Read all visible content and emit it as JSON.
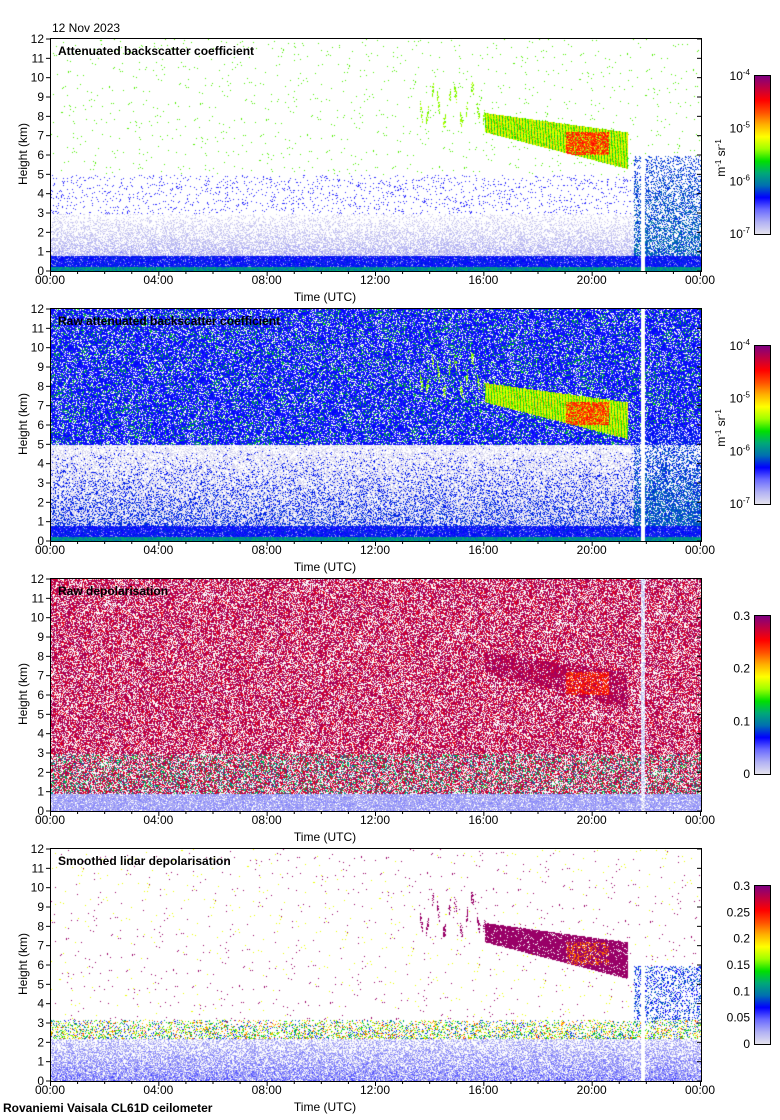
{
  "header": {
    "date": "12 Nov 2023"
  },
  "footer": {
    "site": "Rovaniemi Vaisala CL61D ceilometer"
  },
  "colorscale": [
    "#e4e2ee",
    "#b0b0f4",
    "#6a6aff",
    "#0000ff",
    "#0070b0",
    "#00a878",
    "#00e000",
    "#a0ff00",
    "#ffff00",
    "#ffb000",
    "#ff5000",
    "#ff0000",
    "#c00040",
    "#800080"
  ],
  "chart_data": [
    {
      "type": "heatmap",
      "title": "Attenuated backscatter coefficient",
      "xlabel": "Time (UTC)",
      "ylabel": "Height (km)",
      "xlim": [
        0,
        24
      ],
      "ylim": [
        0,
        12
      ],
      "xticks": [
        "00:00",
        "04:00",
        "08:00",
        "12:00",
        "16:00",
        "20:00",
        "00:00"
      ],
      "yticks": [
        "0",
        "1",
        "2",
        "3",
        "4",
        "5",
        "6",
        "7",
        "8",
        "9",
        "10",
        "11",
        "12"
      ],
      "colorbar": {
        "scale": "log",
        "range": [
          1e-07,
          0.0001
        ],
        "ticks": [
          {
            "base": "10",
            "exp": "-4"
          },
          {
            "base": "10",
            "exp": "-5"
          },
          {
            "base": "10",
            "exp": "-6"
          },
          {
            "base": "10",
            "exp": "-7"
          }
        ],
        "unit": {
          "a": "m",
          "ae": "-1",
          "b": " sr",
          "be": "-1"
        }
      },
      "features": {
        "cloud_layer": {
          "start_h": 16,
          "end_h": 21.3,
          "base_km": [
            7.2,
            5.3
          ],
          "top_km": [
            8.2,
            7.2
          ]
        },
        "boundary_layer_top_km": 0.8,
        "data_gap_h": [
          21.75,
          21.9
        ]
      }
    },
    {
      "type": "heatmap",
      "title": "Raw attenuated backscatter coefficient",
      "xlabel": "Time (UTC)",
      "ylabel": "Height (km)",
      "xlim": [
        0,
        24
      ],
      "ylim": [
        0,
        12
      ],
      "xticks": [
        "00:00",
        "04:00",
        "08:00",
        "12:00",
        "16:00",
        "20:00",
        "00:00"
      ],
      "yticks": [
        "0",
        "1",
        "2",
        "3",
        "4",
        "5",
        "6",
        "7",
        "8",
        "9",
        "10",
        "11",
        "12"
      ],
      "colorbar": {
        "scale": "log",
        "range": [
          1e-07,
          0.0001
        ],
        "ticks": [
          {
            "base": "10",
            "exp": "-4"
          },
          {
            "base": "10",
            "exp": "-5"
          },
          {
            "base": "10",
            "exp": "-6"
          },
          {
            "base": "10",
            "exp": "-7"
          }
        ],
        "unit": {
          "a": "m",
          "ae": "-1",
          "b": " sr",
          "be": "-1"
        }
      }
    },
    {
      "type": "heatmap",
      "title": "Raw depolarisation",
      "xlabel": "Time (UTC)",
      "ylabel": "Height (km)",
      "xlim": [
        0,
        24
      ],
      "ylim": [
        0,
        12
      ],
      "xticks": [
        "00:00",
        "04:00",
        "08:00",
        "12:00",
        "16:00",
        "20:00",
        "00:00"
      ],
      "yticks": [
        "0",
        "1",
        "2",
        "3",
        "4",
        "5",
        "6",
        "7",
        "8",
        "9",
        "10",
        "11",
        "12"
      ],
      "colorbar": {
        "scale": "linear",
        "range": [
          0,
          0.3
        ],
        "ticks": [
          {
            "base": "0.3"
          },
          {
            "base": "0.2"
          },
          {
            "base": "0.1"
          },
          {
            "base": "0"
          }
        ]
      }
    },
    {
      "type": "heatmap",
      "title": "Smoothed lidar depolarisation",
      "xlabel": "Time (UTC)",
      "ylabel": "Height (km)",
      "xlim": [
        0,
        24
      ],
      "ylim": [
        0,
        12
      ],
      "xticks": [
        "00:00",
        "04:00",
        "08:00",
        "12:00",
        "16:00",
        "20:00",
        "00:00"
      ],
      "yticks": [
        "0",
        "1",
        "2",
        "3",
        "4",
        "5",
        "6",
        "7",
        "8",
        "9",
        "10",
        "11",
        "12"
      ],
      "colorbar": {
        "scale": "linear",
        "range": [
          0,
          0.3
        ],
        "ticks": [
          {
            "base": "0.3"
          },
          {
            "base": "0.25"
          },
          {
            "base": "0.2"
          },
          {
            "base": "0.15"
          },
          {
            "base": "0.1"
          },
          {
            "base": "0.05"
          },
          {
            "base": "0"
          }
        ]
      }
    }
  ]
}
